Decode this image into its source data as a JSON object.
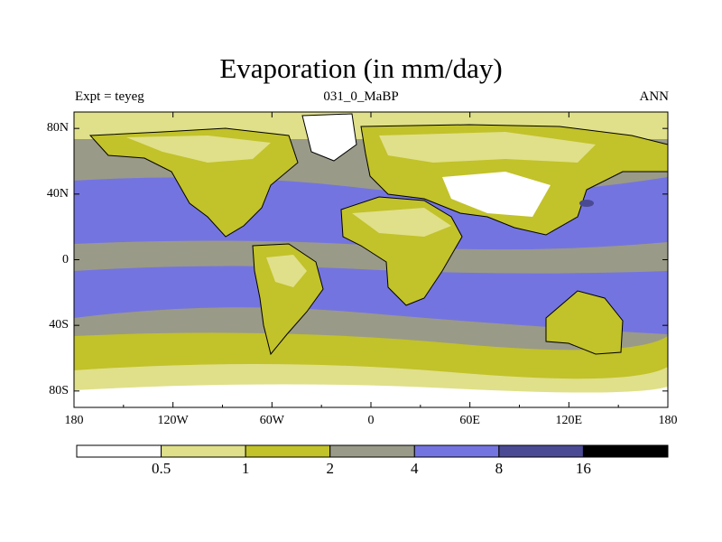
{
  "header": {
    "title": "Evaporation (in mm/day)",
    "left_label": "Expt = teyeg",
    "center_label": "031_0_MaBP",
    "right_label": "ANN"
  },
  "axes": {
    "lat_ticks": [
      {
        "label": "80N",
        "value": 80
      },
      {
        "label": "40N",
        "value": 40
      },
      {
        "label": "0",
        "value": 0
      },
      {
        "label": "40S",
        "value": -40
      },
      {
        "label": "80S",
        "value": -80
      }
    ],
    "lon_ticks": [
      {
        "label": "180",
        "value": -180
      },
      {
        "label": "120W",
        "value": -120
      },
      {
        "label": "60W",
        "value": -60
      },
      {
        "label": "0",
        "value": 0
      },
      {
        "label": "60E",
        "value": 60
      },
      {
        "label": "120E",
        "value": 120
      },
      {
        "label": "180",
        "value": 180
      }
    ],
    "lat_range": [
      -90,
      90
    ],
    "lon_range": [
      -180,
      180
    ]
  },
  "colorbar": {
    "colors": [
      "#ffffff",
      "#e0e08a",
      "#c2c22a",
      "#9a9a88",
      "#7474e0",
      "#4a4a94",
      "#000000"
    ],
    "labels": [
      "0.5",
      "1",
      "2",
      "4",
      "8",
      "16"
    ]
  },
  "colors": {
    "ocean_tropics": "#7474e0",
    "ocean_mid": "#9a9a88",
    "land_mid": "#c2c22a",
    "land_light": "#e0e08a",
    "ice": "#ffffff",
    "deep": "#4a4a94"
  }
}
